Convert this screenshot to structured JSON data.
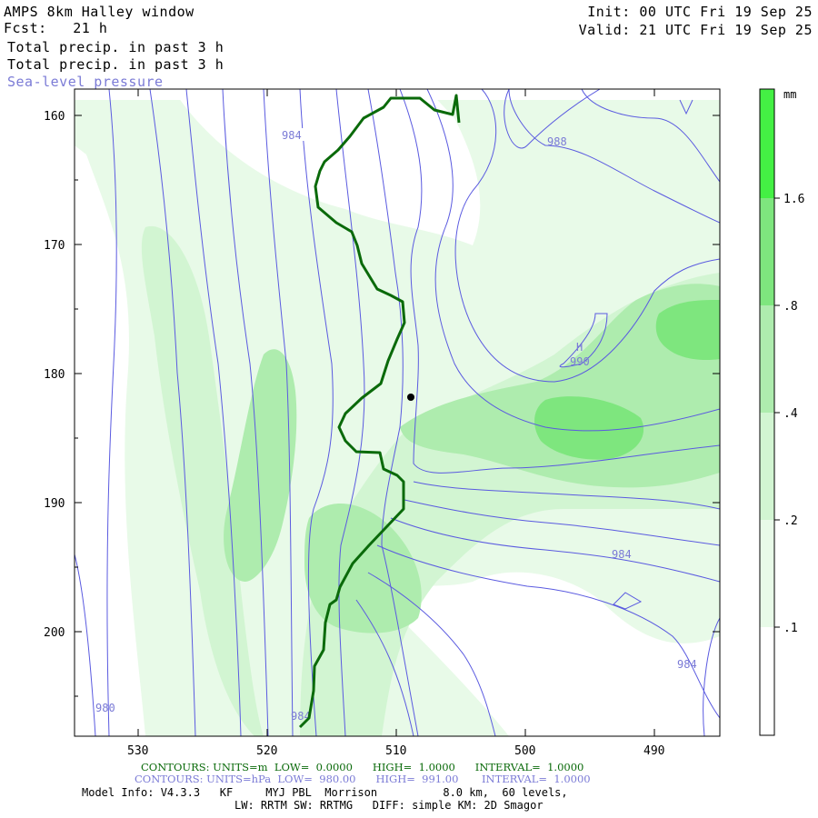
{
  "header": {
    "title": "AMPS 8km Halley window",
    "fcst_label": "Fcst:",
    "fcst_value": "21 h",
    "field1": "Total precip. in past 3 h",
    "field2": "Total precip. in past 3 h",
    "field3": "Sea-level pressure",
    "init": "Init: 00 UTC Fri 19 Sep 25",
    "valid": "Valid: 21 UTC Fri 19 Sep 25"
  },
  "map": {
    "y_ticks": [
      "160",
      "170",
      "180",
      "190",
      "200"
    ],
    "x_ticks": [
      "530",
      "520",
      "510",
      "500",
      "490"
    ],
    "isobar_labels": [
      "984",
      "988",
      "990",
      "984",
      "984",
      "984",
      "980"
    ],
    "high_marker": "H"
  },
  "colorbar": {
    "unit": "mm",
    "labels": [
      "1.6",
      ".8",
      ".4",
      ".2",
      ".1"
    ],
    "colors": [
      "#ffffff",
      "#e8fae8",
      "#d2f5d2",
      "#aeecae",
      "#7ee67e",
      "#44f044"
    ]
  },
  "footer": {
    "line1_a": "CONTOURS: UNITS=m  LOW=  0.0000",
    "line1_b": "HIGH=  1.0000",
    "line1_c": "INTERVAL=  1.0000",
    "line2_a": "CONTOURS: UNITS=hPa  LOW=  980.00",
    "line2_b": "HIGH=  991.00",
    "line2_c": "INTERVAL=  1.0000",
    "line3": "Model Info: V4.3.3   KF     MYJ PBL  Morrison          8.0 km,  60 levels,",
    "line4": "LW: RRTM SW: RRTMG   DIFF: simple KM: 2D Smagor"
  }
}
